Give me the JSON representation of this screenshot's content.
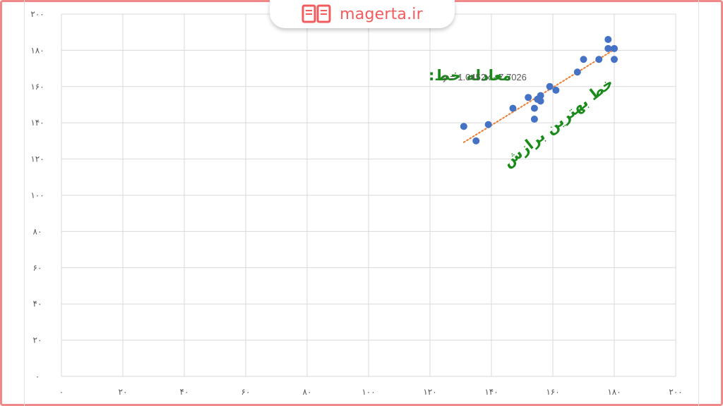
{
  "brand": {
    "name": "magerta.ir",
    "icon": "open-book-icon",
    "color": "#f25c5c"
  },
  "annotations": {
    "equation_label": "معادله خط:",
    "trendline_label": "خط بهترین برازش",
    "equation": "y = 1.0452x - 7.7026",
    "label_color": "#1a8a1a"
  },
  "chart_data": {
    "type": "scatter",
    "xlim": [
      0,
      200
    ],
    "ylim": [
      0,
      200
    ],
    "x_ticks": [
      0,
      20,
      40,
      60,
      80,
      100,
      120,
      140,
      160,
      180,
      200
    ],
    "y_ticks": [
      0,
      20,
      40,
      60,
      80,
      100,
      120,
      140,
      160,
      180,
      200
    ],
    "x_tick_labels": [
      "۰",
      "۲۰",
      "۴۰",
      "۶۰",
      "۸۰",
      "۱۰۰",
      "۱۲۰",
      "۱۴۰",
      "۱۶۰",
      "۱۸۰",
      "۲۰۰"
    ],
    "y_tick_labels": [
      "۰",
      "۲۰",
      "۴۰",
      "۶۰",
      "۸۰",
      "۱۰۰",
      "۱۲۰",
      "۱۴۰",
      "۱۶۰",
      "۱۸۰",
      "۲۰۰"
    ],
    "grid": true,
    "series": [
      {
        "color": "#4472c4",
        "points": [
          [
            131,
            138
          ],
          [
            135,
            130
          ],
          [
            139,
            139
          ],
          [
            147,
            148
          ],
          [
            152,
            154
          ],
          [
            154,
            142
          ],
          [
            154,
            148
          ],
          [
            155,
            153
          ],
          [
            156,
            152
          ],
          [
            156,
            155
          ],
          [
            159,
            160
          ],
          [
            161,
            158
          ],
          [
            168,
            168
          ],
          [
            170,
            175
          ],
          [
            175,
            175
          ],
          [
            178,
            181
          ],
          [
            178,
            186
          ],
          [
            180,
            175
          ],
          [
            180,
            181
          ]
        ]
      }
    ],
    "trendline": {
      "type": "linear",
      "slope": 1.0452,
      "intercept": -7.7026,
      "x_range": [
        131,
        180
      ],
      "color": "#ed7d31",
      "style": "dotted"
    }
  }
}
